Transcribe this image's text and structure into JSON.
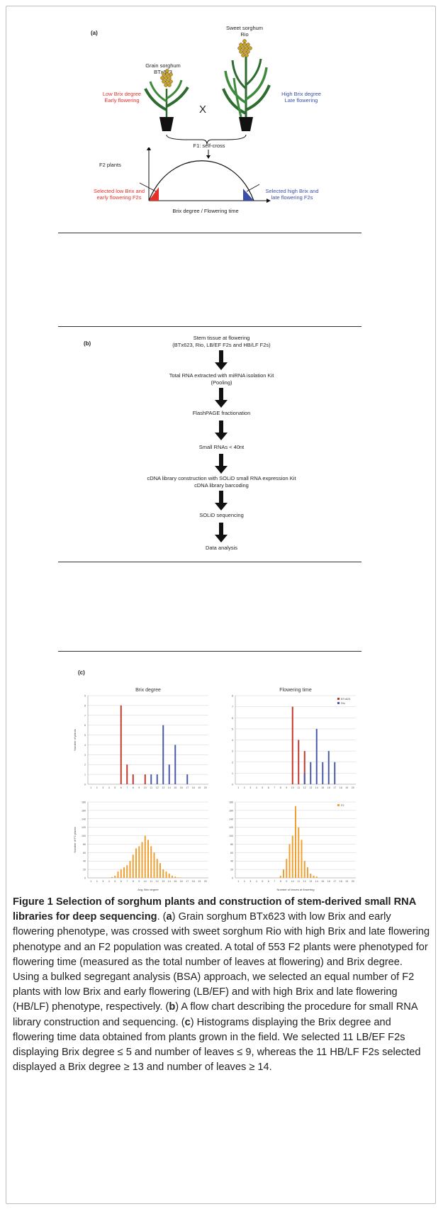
{
  "panel_a": {
    "label": "(a)",
    "grain_title": "Grain sorghum",
    "grain_name": "BTx623",
    "grain_traits": [
      "Low Brix degree",
      "Early flowering"
    ],
    "cross_symbol": "X",
    "sweet_title": "Sweet sorghum",
    "sweet_name": "Rio",
    "sweet_traits": [
      "High Brix degree",
      "Late flowering"
    ],
    "f1_label": "F1: self-cross",
    "f2_label": "F2 plants",
    "selected_low": [
      "Selected low Brix and",
      "early flowering F2s"
    ],
    "selected_high": [
      "Selected high Brix and",
      "late flowering F2s"
    ],
    "xaxis_label": "Brix degree / Flowering time",
    "colors": {
      "low": "#e8302a",
      "high": "#3b4fa8",
      "plant": "#2e6b2e",
      "pot": "#111111",
      "seed": "#c9a227"
    }
  },
  "panel_b": {
    "label": "(b)",
    "steps": [
      [
        "Stem tissue at flowering",
        "(BTx623, Rio, LB/EF F2s and HB/LF F2s)"
      ],
      [
        "Total RNA extracted with miRNA isolation Kit",
        "(Pooling)"
      ],
      [
        "FlashPAGE fractionation"
      ],
      [
        "Small RNAs < 40nt"
      ],
      [
        "cDNA library construction with SOLiD small RNA expression Kit",
        "cDNA library barcoding"
      ],
      [
        "SOLiD sequencing"
      ],
      [
        "Data analysis"
      ]
    ]
  },
  "panel_c": {
    "label": "(c)",
    "colors": {
      "btx": "#c0392b",
      "rio": "#4a5aa8",
      "f2": "#f0a030"
    }
  },
  "chart_data": [
    {
      "type": "bar",
      "title": "Brix degree",
      "ylabel": "Number of plants",
      "xlabel": "",
      "x": [
        1,
        2,
        3,
        4,
        5,
        6,
        7,
        8,
        9,
        10,
        11,
        12,
        13,
        14,
        15,
        16,
        17,
        18,
        19,
        20
      ],
      "ylim": [
        0,
        9
      ],
      "yticks": [
        0,
        1,
        2,
        3,
        4,
        5,
        6,
        7,
        8,
        9
      ],
      "series": [
        {
          "name": "",
          "values": [
            0,
            0,
            0,
            0,
            0,
            8,
            2,
            1,
            0,
            1,
            0,
            0,
            0,
            0,
            0,
            0,
            0,
            0,
            0,
            0
          ]
        },
        {
          "name": "",
          "values": [
            0,
            0,
            0,
            0,
            0,
            0,
            0,
            0,
            0,
            0,
            1,
            1,
            6,
            2,
            4,
            0,
            1,
            0,
            0,
            0
          ]
        }
      ]
    },
    {
      "type": "bar",
      "title": "Flowering time",
      "ylabel": "",
      "xlabel": "",
      "x": [
        1,
        2,
        3,
        4,
        5,
        6,
        7,
        8,
        9,
        10,
        11,
        12,
        13,
        14,
        15,
        16,
        17,
        18,
        19,
        20
      ],
      "ylim": [
        0,
        8
      ],
      "yticks": [
        0,
        1,
        2,
        3,
        4,
        5,
        6,
        7,
        8
      ],
      "legend_position": "top-right",
      "series": [
        {
          "name": "BTx623",
          "values": [
            0,
            0,
            0,
            0,
            0,
            0,
            0,
            0,
            0,
            7,
            4,
            3,
            0,
            0,
            0,
            0,
            0,
            0,
            0,
            0
          ]
        },
        {
          "name": "Rio",
          "values": [
            0,
            0,
            0,
            0,
            0,
            0,
            0,
            0,
            0,
            0,
            0,
            1,
            2,
            5,
            2,
            3,
            2,
            0,
            0,
            0
          ]
        }
      ]
    },
    {
      "type": "bar",
      "title": "",
      "ylabel": "Number of F2 plants",
      "xlabel": "Avg. Brix degree",
      "x": [
        1,
        1.5,
        2,
        2.5,
        3,
        3.5,
        4,
        4.5,
        5,
        5.5,
        6,
        6.5,
        7,
        7.5,
        8,
        8.5,
        9,
        9.5,
        10,
        10.5,
        11,
        11.5,
        12,
        12.5,
        13,
        13.5,
        14,
        14.5,
        15,
        15.5,
        16,
        16.5,
        17,
        17.5,
        18,
        18.5,
        19,
        19.5,
        20
      ],
      "ylim": [
        0,
        180
      ],
      "yticks": [
        0,
        20,
        40,
        60,
        80,
        100,
        120,
        140,
        160,
        180
      ],
      "series": [
        {
          "name": "",
          "values": [
            0,
            0,
            0,
            0,
            0,
            0,
            0,
            2,
            5,
            15,
            20,
            25,
            30,
            40,
            55,
            70,
            75,
            85,
            100,
            90,
            75,
            60,
            45,
            35,
            20,
            15,
            10,
            5,
            3,
            1,
            1,
            0,
            0,
            0,
            0,
            0,
            0,
            0,
            0
          ]
        }
      ]
    },
    {
      "type": "bar",
      "title": "",
      "ylabel": "",
      "xlabel": "Number of leaves at flowering",
      "x": [
        1,
        1.5,
        2,
        2.5,
        3,
        3.5,
        4,
        4.5,
        5,
        5.5,
        6,
        6.5,
        7,
        7.5,
        8,
        8.5,
        9,
        9.5,
        10,
        10.5,
        11,
        11.5,
        12,
        12.5,
        13,
        13.5,
        14,
        14.5,
        15,
        15.5,
        16,
        16.5,
        17,
        17.5,
        18,
        18.5,
        19,
        19.5,
        20
      ],
      "ylim": [
        0,
        180
      ],
      "yticks": [
        0,
        20,
        40,
        60,
        80,
        100,
        120,
        140,
        160,
        180
      ],
      "legend_position": "top-right",
      "series": [
        {
          "name": "F2",
          "values": [
            0,
            0,
            0,
            0,
            0,
            0,
            0,
            0,
            0,
            0,
            0,
            0,
            0,
            0,
            5,
            20,
            45,
            80,
            100,
            170,
            120,
            90,
            40,
            25,
            10,
            5,
            3,
            0,
            0,
            0,
            0,
            0,
            0,
            0,
            0,
            0,
            0,
            0,
            0
          ]
        }
      ]
    }
  ],
  "caption": {
    "figure_label": "Figure 1",
    "title": "Selection of sorghum plants and construction of stem-derived small RNA libraries for deep sequencing",
    "segments": [
      ". (",
      "a",
      ") Grain sorghum BTx623 with low Brix and early flowering phenotype, was crossed with sweet sorghum Rio with high Brix and late flowering phenotype and an F2 population was created. A total of 553 F2 plants were phenotyped for flowering time (measured as the total number of leaves at flowering) and Brix degree. Using a bulked segregant analysis (BSA) approach, we selected an equal number of F2 plants with low Brix and early flowering (LB/EF) and with high Brix and late flowering (HB/LF) phenotype, respectively. (",
      "b",
      ") A flow chart describing the procedure for small RNA library construction and sequencing. (",
      "c",
      ") Histograms displaying the Brix degree and flowering time data obtained from plants grown in the field. We selected 11 LB/EF F2s displaying Brix degree ≤ 5 and number of leaves ≤ 9, whereas the 11 HB/LF F2s selected displayed a Brix degree ≥ 13 and number of leaves ≥ 14."
    ]
  }
}
